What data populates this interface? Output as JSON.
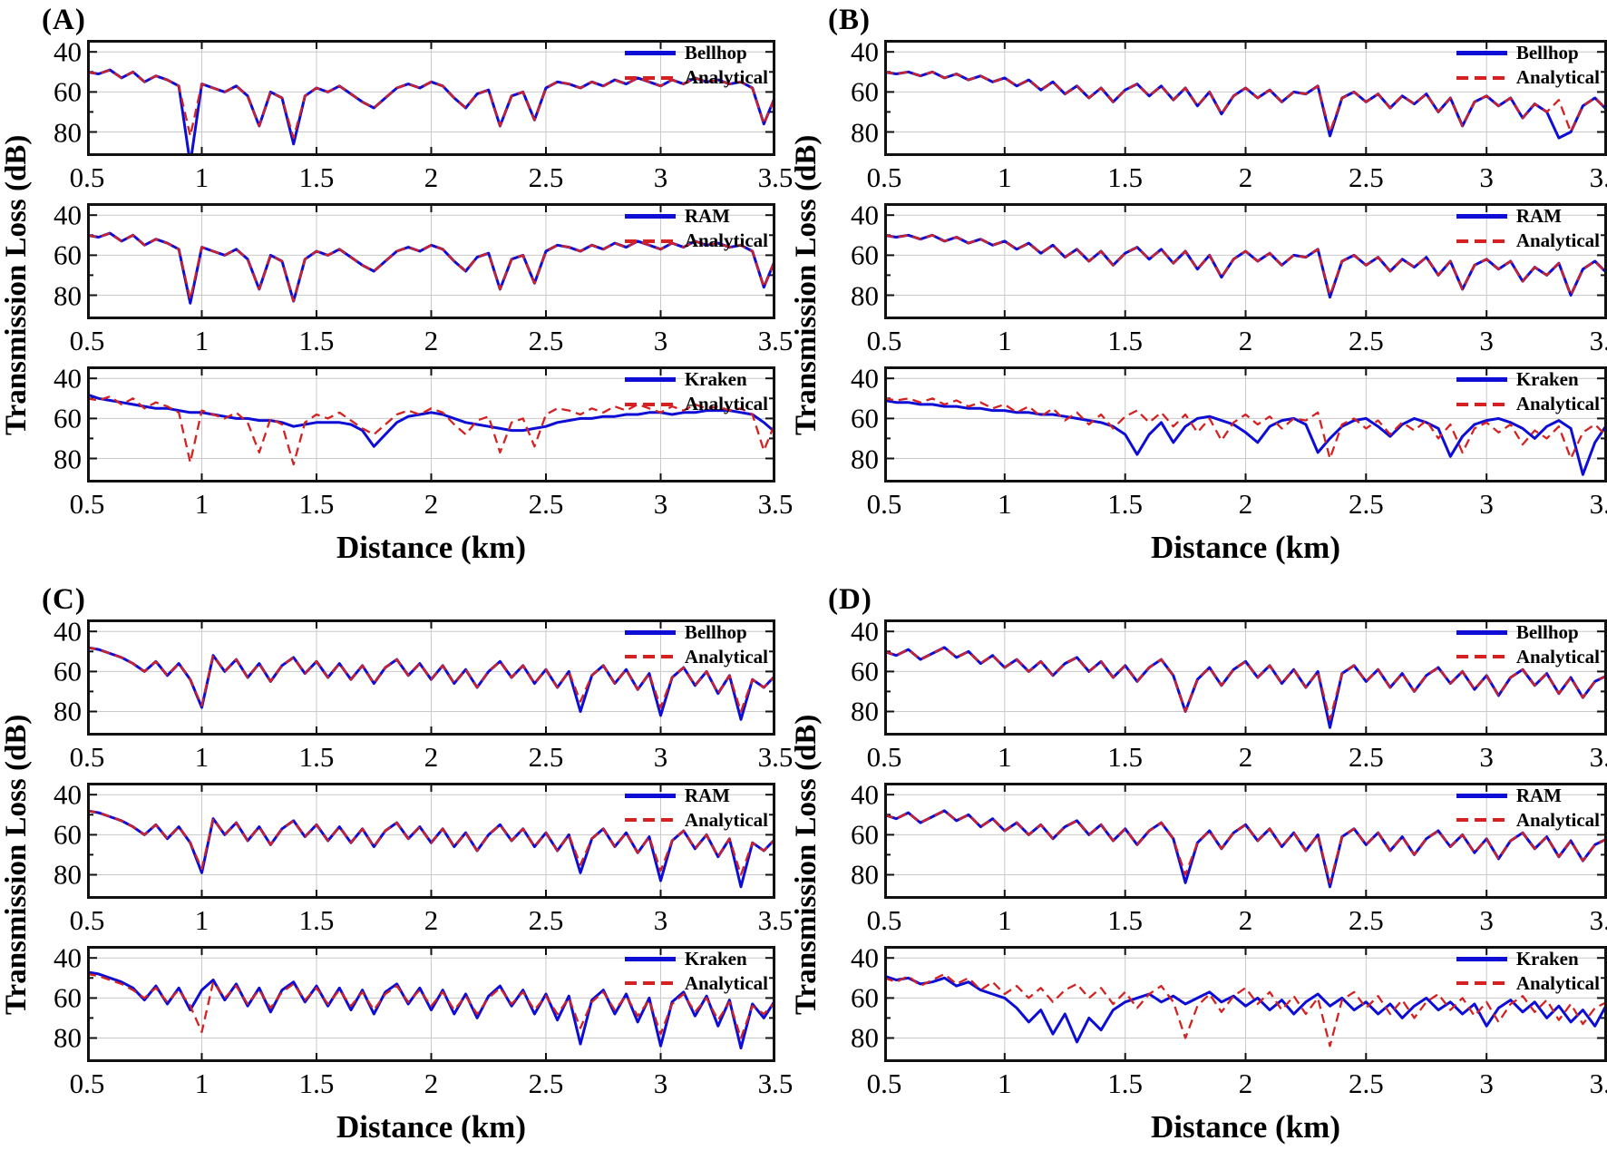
{
  "colors": {
    "model_line": "#0D0DD6",
    "analytical_line": "#D42121",
    "grid": "#C9C9C9",
    "axis": "#111111",
    "background": "#FFFFFF",
    "text": "#000000"
  },
  "chart_data": {
    "type": "line",
    "analytical_label": "Analytical",
    "xlabel": "Distance (km)",
    "ylabel": "Transmission Loss (dB)",
    "x_start": 0.5,
    "x_step": 0.05,
    "x_end": 3.5,
    "x_ticks": [
      0.5,
      1,
      1.5,
      2,
      2.5,
      3,
      3.5
    ],
    "x_tick_labels": [
      "0.5",
      "1",
      "1.5",
      "2",
      "2.5",
      "3",
      "3.5"
    ],
    "y_ticks": [
      40,
      60,
      80
    ],
    "y_minor_ticks": [
      50,
      70
    ],
    "y_tick_labels": [
      "40",
      "60",
      "80"
    ],
    "y_axis_reversed": true,
    "y_domain": [
      34,
      92
    ],
    "legend_position": "top-right",
    "grid": true,
    "panels": [
      {
        "label": "(A)",
        "analytical_y": [
          50,
          51,
          49,
          53,
          50,
          55,
          52,
          54,
          57,
          82,
          56,
          58,
          60,
          57,
          62,
          77,
          60,
          63,
          83,
          62,
          58,
          60,
          57,
          61,
          65,
          68,
          63,
          58,
          56,
          58,
          55,
          57,
          63,
          68,
          61,
          59,
          77,
          62,
          60,
          74,
          58,
          55,
          56,
          58,
          55,
          57,
          54,
          56,
          53,
          55,
          57,
          54,
          56,
          53,
          55,
          54,
          56,
          55,
          58,
          76,
          62
        ],
        "kraken_y": [
          48,
          50,
          51,
          52,
          53,
          54,
          55,
          55,
          56,
          57,
          57,
          58,
          59,
          60,
          60,
          61,
          61,
          62,
          64,
          63,
          62,
          62,
          62,
          63,
          66,
          74,
          68,
          62,
          59,
          58,
          57,
          58,
          60,
          62,
          63,
          64,
          65,
          66,
          66,
          65,
          64,
          62,
          61,
          60,
          60,
          59,
          59,
          58,
          58,
          57,
          57,
          58,
          57,
          57,
          56,
          56,
          56,
          57,
          58,
          62,
          67
        ],
        "subplots": [
          {
            "model": "Bellhop",
            "model_source": "analytical",
            "overrides": {
              "9": 96,
              "18": 86
            }
          },
          {
            "model": "RAM",
            "model_source": "analytical",
            "overrides": {
              "9": 84
            }
          },
          {
            "model": "Kraken",
            "model_source": "kraken",
            "overrides": {}
          }
        ]
      },
      {
        "label": "(B)",
        "analytical_y": [
          50,
          51,
          50,
          52,
          50,
          53,
          51,
          54,
          52,
          55,
          53,
          57,
          54,
          59,
          55,
          61,
          57,
          63,
          58,
          65,
          59,
          56,
          62,
          57,
          64,
          58,
          67,
          60,
          71,
          62,
          58,
          63,
          59,
          65,
          60,
          61,
          57,
          80,
          63,
          60,
          65,
          61,
          68,
          62,
          66,
          61,
          70,
          63,
          77,
          65,
          62,
          67,
          63,
          73,
          66,
          70,
          64,
          80,
          67,
          63,
          69
        ],
        "kraken_y": [
          51,
          52,
          52,
          53,
          53,
          54,
          54,
          55,
          55,
          56,
          56,
          57,
          57,
          58,
          58,
          59,
          60,
          61,
          62,
          64,
          68,
          78,
          68,
          62,
          72,
          64,
          60,
          59,
          61,
          63,
          67,
          72,
          64,
          61,
          60,
          63,
          77,
          70,
          64,
          61,
          60,
          64,
          69,
          63,
          60,
          62,
          65,
          79,
          69,
          63,
          61,
          60,
          62,
          65,
          70,
          64,
          61,
          65,
          88,
          72,
          63
        ],
        "subplots": [
          {
            "model": "Bellhop",
            "model_source": "analytical",
            "overrides": {
              "37": 82,
              "56": 83
            }
          },
          {
            "model": "RAM",
            "model_source": "analytical",
            "overrides": {
              "37": 81
            }
          },
          {
            "model": "Kraken",
            "model_source": "kraken",
            "overrides": {}
          }
        ]
      },
      {
        "label": "(C)",
        "analytical_y": [
          48,
          49,
          51,
          53,
          56,
          60,
          55,
          62,
          56,
          64,
          77,
          52,
          60,
          54,
          63,
          56,
          65,
          57,
          53,
          61,
          55,
          63,
          56,
          64,
          57,
          66,
          58,
          54,
          62,
          56,
          64,
          57,
          66,
          59,
          68,
          60,
          55,
          63,
          57,
          66,
          59,
          68,
          60,
          75,
          62,
          57,
          66,
          59,
          69,
          61,
          78,
          63,
          58,
          67,
          60,
          71,
          62,
          80,
          64,
          68,
          62
        ],
        "kraken_y": [
          47,
          48,
          50,
          52,
          55,
          61,
          54,
          63,
          55,
          66,
          56,
          51,
          61,
          53,
          64,
          55,
          67,
          56,
          52,
          62,
          54,
          64,
          55,
          66,
          56,
          68,
          57,
          53,
          63,
          55,
          66,
          56,
          68,
          58,
          70,
          59,
          54,
          64,
          56,
          68,
          58,
          71,
          59,
          83,
          61,
          56,
          68,
          58,
          72,
          60,
          84,
          62,
          57,
          69,
          59,
          74,
          61,
          85,
          63,
          70,
          61
        ],
        "subplots": [
          {
            "model": "Bellhop",
            "model_source": "analytical",
            "overrides": {
              "10": 78,
              "43": 80,
              "50": 82,
              "57": 84
            }
          },
          {
            "model": "RAM",
            "model_source": "analytical",
            "overrides": {
              "10": 79,
              "43": 79,
              "50": 83,
              "57": 86
            }
          },
          {
            "model": "Kraken",
            "model_source": "kraken",
            "overrides": {}
          }
        ]
      },
      {
        "label": "(D)",
        "analytical_y": [
          50,
          52,
          49,
          54,
          51,
          48,
          53,
          50,
          56,
          52,
          58,
          54,
          60,
          55,
          62,
          56,
          53,
          60,
          55,
          63,
          57,
          65,
          58,
          54,
          62,
          80,
          64,
          58,
          67,
          59,
          55,
          63,
          57,
          66,
          59,
          68,
          60,
          84,
          61,
          57,
          65,
          59,
          68,
          61,
          70,
          62,
          58,
          66,
          60,
          69,
          62,
          72,
          63,
          59,
          67,
          61,
          71,
          63,
          73,
          65,
          62
        ],
        "kraken_y": [
          49,
          51,
          50,
          53,
          52,
          50,
          54,
          52,
          56,
          58,
          60,
          65,
          72,
          66,
          78,
          68,
          82,
          70,
          76,
          66,
          62,
          60,
          58,
          62,
          59,
          63,
          60,
          57,
          62,
          59,
          64,
          60,
          66,
          61,
          68,
          62,
          58,
          64,
          60,
          66,
          62,
          68,
          63,
          70,
          64,
          60,
          66,
          62,
          68,
          63,
          74,
          65,
          61,
          67,
          62,
          70,
          64,
          72,
          66,
          74,
          63
        ],
        "subplots": [
          {
            "model": "Bellhop",
            "model_source": "analytical",
            "overrides": {
              "37": 88
            }
          },
          {
            "model": "RAM",
            "model_source": "analytical",
            "overrides": {
              "25": 84,
              "37": 86
            }
          },
          {
            "model": "Kraken",
            "model_source": "kraken",
            "overrides": {}
          }
        ]
      }
    ]
  }
}
